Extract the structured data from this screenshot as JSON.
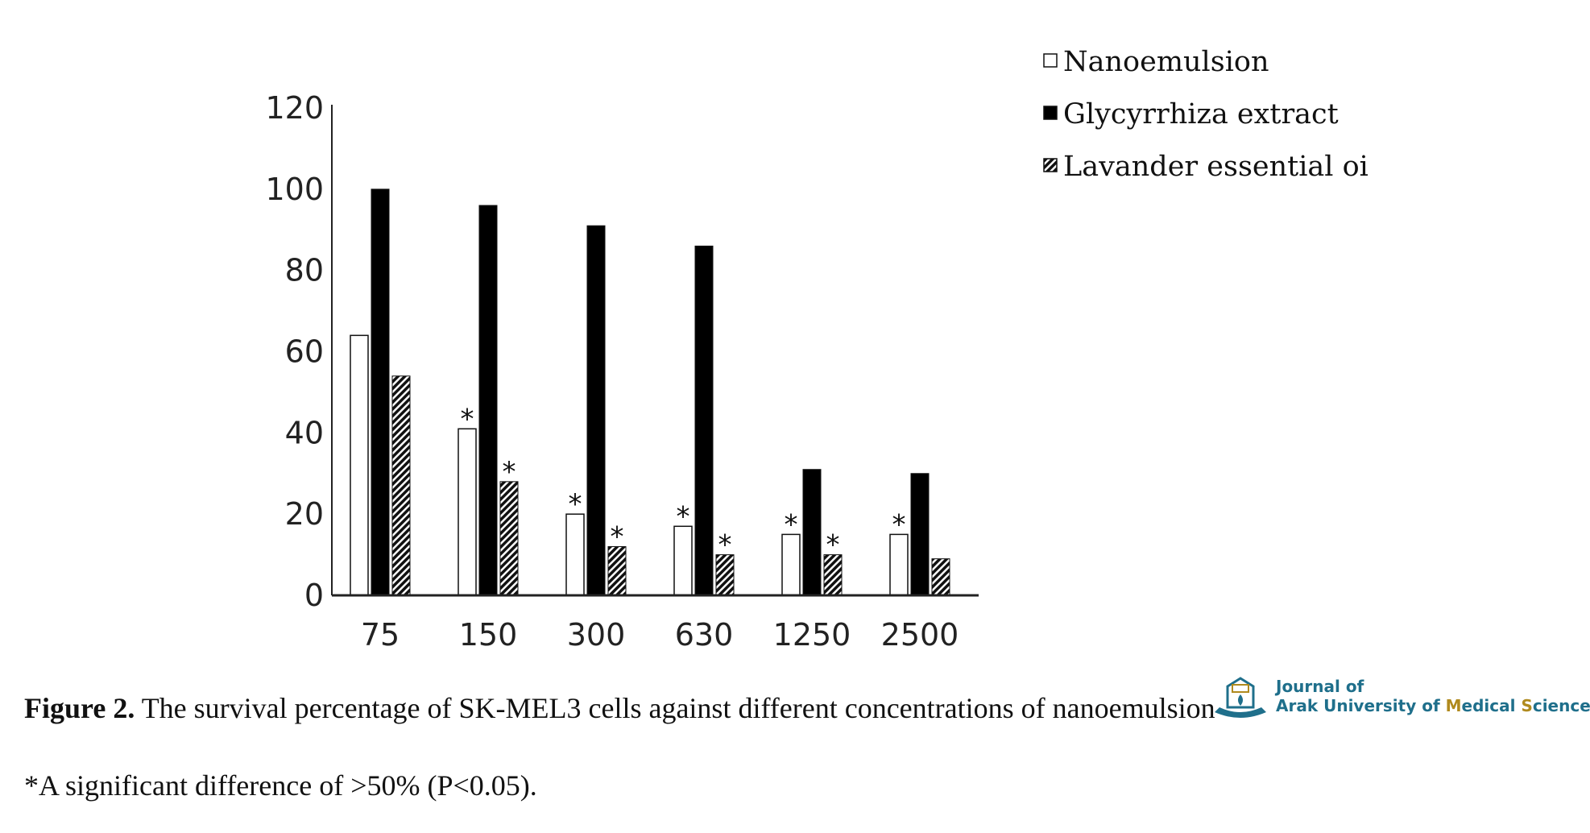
{
  "chart_data": {
    "type": "bar",
    "categories": [
      "75",
      "150",
      "300",
      "630",
      "1250",
      "2500"
    ],
    "series": [
      {
        "name": "Nanoemulsion",
        "values": [
          64,
          41,
          20,
          17,
          15,
          15
        ],
        "fill": "white",
        "significant": [
          false,
          true,
          true,
          true,
          true,
          true
        ]
      },
      {
        "name": "Glycyrrhiza extract",
        "values": [
          100,
          96,
          91,
          86,
          31,
          30
        ],
        "fill": "black",
        "significant": [
          false,
          false,
          false,
          false,
          false,
          false
        ]
      },
      {
        "name": "Lavander essential oi",
        "values": [
          54,
          28,
          12,
          10,
          10,
          9
        ],
        "fill": "hatched",
        "significant": [
          false,
          true,
          true,
          true,
          true,
          false
        ]
      }
    ],
    "ylim": [
      0,
      120
    ],
    "yticks": [
      0,
      20,
      40,
      60,
      80,
      100,
      120
    ],
    "significance_marker": "*",
    "legend_position": "top-right"
  },
  "caption": {
    "figure_label": "Figure 2.",
    "text": "The survival percentage of SK-MEL3 cells against different concentrations of nanoemulsion",
    "footnote": "*A significant difference of >50% (P<0.05)."
  },
  "logo": {
    "line1": "Journal of",
    "line2_parts": [
      "Arak University of ",
      "M",
      "edical ",
      "S",
      "ciences"
    ],
    "colors": {
      "primary": "#1f6f8b",
      "accent": "#b08a1e"
    }
  }
}
